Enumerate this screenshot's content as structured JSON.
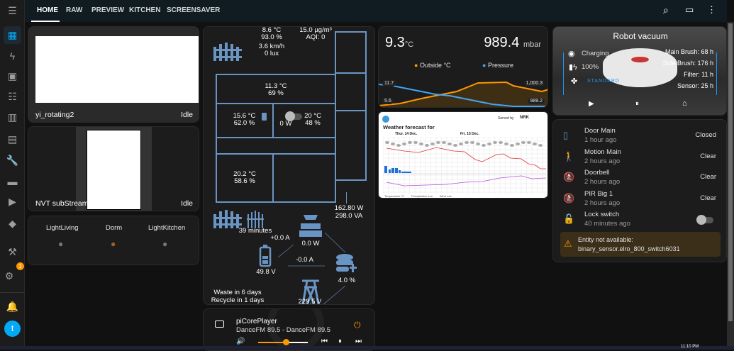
{
  "topbar": {
    "tabs": [
      "HOME",
      "RAW",
      "PREVIEW",
      "KITCHEN",
      "SCREENSAVER"
    ],
    "active_tab": "HOME",
    "icons": [
      "search-icon",
      "assist-icon",
      "more-vert-icon"
    ]
  },
  "sidebar": {
    "items": [
      "menu-icon",
      "overview-icon",
      "energy-icon",
      "map-icon",
      "logbook-icon",
      "history-icon",
      "calendar-icon",
      "wrench-icon",
      "hacs-icon",
      "media-icon",
      "docker-icon",
      "developer-tools-icon",
      "settings-icon",
      "notifications-icon"
    ],
    "settings_badge": "1",
    "user_initial": "t"
  },
  "cameras": [
    {
      "name": "yi_rotating2",
      "state": "Idle"
    },
    {
      "name": "NVT subStream",
      "state": "Idle"
    }
  ],
  "lights": [
    {
      "name": "LightLiving",
      "state": "off"
    },
    {
      "name": "Dorm",
      "state": "on"
    },
    {
      "name": "LightKitchen",
      "state": "off"
    }
  ],
  "floorplan": {
    "outside_temp": "8.6 °C",
    "outside_hum": "93.0 %",
    "pm": "15.0 µg/m³",
    "aqi": "AQI: 0",
    "wind": "3.6 km/h",
    "lux": "0 lux",
    "room1_temp": "11.3 °C",
    "room1_hum": "69 %",
    "room2_temp": "15.6 °C",
    "room2_hum": "62.0 %",
    "room3_power": "0 W",
    "room3_temp": "20 °C",
    "room3_hum": "48 %",
    "room4_temp": "20.2 °C",
    "room4_hum": "58.6 %",
    "gate_time": "39 minutes",
    "power_w": "162.80 W",
    "power_va": "298.0 VA",
    "battery_current": "+0.0 A",
    "solar": "0.0 W",
    "battery_v": "49.8 V",
    "grid_current": "-0.0 A",
    "storage": "4.0 %",
    "grid_v": "229.5 V",
    "waste": "Waste in 6 days",
    "recycle": "Recycle in 1 days"
  },
  "media": {
    "name": "piCorePlayer",
    "title": "DanceFM 89.5 - DanceFM 89.5",
    "volume_percent": 55
  },
  "sensor_graph": {
    "temp": "9.3",
    "temp_unit": "°C",
    "pressure": "989.4",
    "pressure_unit": "mbar",
    "legend": [
      "Outside °C",
      "Pressure"
    ],
    "labels": [
      "11.7",
      "5.6",
      "1,000.3",
      "989.2"
    ],
    "colors": {
      "temp": "#ff9800",
      "pressure": "#42a5f5"
    }
  },
  "weather": {
    "served_by": "Served by",
    "nrk": "NRK",
    "title": "Weather forecast for",
    "day1": "Thur. 14 Dec.",
    "day2": "Fri. 15 Dec.",
    "legend": [
      "Temperature °C",
      "Precipitation mm",
      "Wind m/s"
    ]
  },
  "vacuum": {
    "title": "Robot vacuum",
    "status": "Charging",
    "battery": "100%",
    "fan": "STANDARD",
    "main_brush": "Main Brush: 68 h",
    "side_brush": "Side Brush: 176 h",
    "filter": "Filter: 11 h",
    "sensor": "Sensor: 25 h"
  },
  "entities": [
    {
      "name": "Door Main",
      "time": "1 hour ago",
      "state": "Closed"
    },
    {
      "name": "Motion Main",
      "time": "2 hours ago",
      "state": "Clear"
    },
    {
      "name": "Doorbell",
      "time": "2 hours ago",
      "state": "Clear"
    },
    {
      "name": "PIR Big 1",
      "time": "2 hours ago",
      "state": "Clear"
    },
    {
      "name": "Lock switch",
      "time": "40 minutes ago",
      "state": "off"
    }
  ],
  "warning": {
    "line1": "Entity not available:",
    "line2": "binary_sensor.elro_800_switch6031"
  },
  "taskbar": {
    "clock": "11:10 PM"
  }
}
